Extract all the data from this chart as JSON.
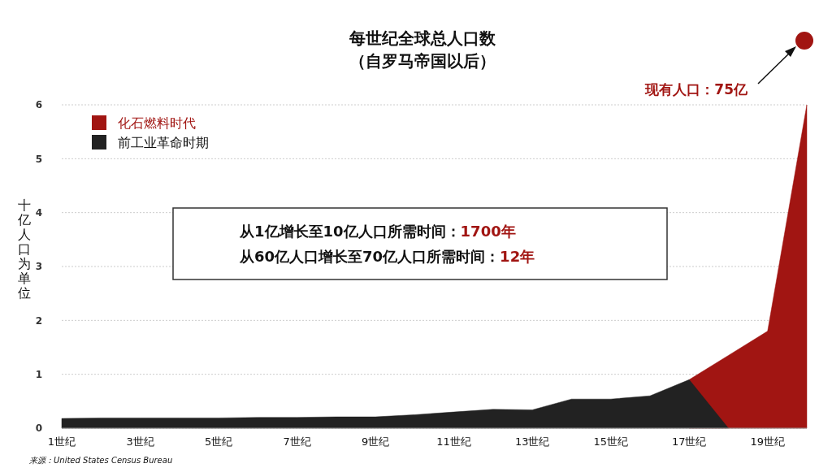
{
  "chart_data": {
    "type": "area",
    "title": "每世纪全球总人口数",
    "subtitle": "（自罗马帝国以后）",
    "ylabel": "十亿人口为单位",
    "categories": [
      "1世纪",
      null,
      "3世纪",
      null,
      "5世纪",
      null,
      "7世纪",
      null,
      "9世纪",
      null,
      "11世纪",
      null,
      "13世纪",
      null,
      "15世纪",
      null,
      "17世纪",
      null,
      "19世纪",
      null
    ],
    "series": [
      {
        "name": "化石燃料时代",
        "color": "#a11512",
        "values": [
          null,
          null,
          null,
          null,
          null,
          null,
          null,
          null,
          null,
          null,
          null,
          null,
          null,
          null,
          null,
          null,
          0.9,
          1.35,
          1.8,
          6.0
        ]
      },
      {
        "name": "前工业革命时期",
        "color": "#222222",
        "values": [
          0.18,
          0.19,
          0.19,
          0.19,
          0.19,
          0.2,
          0.2,
          0.21,
          0.21,
          0.25,
          0.3,
          0.35,
          0.34,
          0.54,
          0.54,
          0.6,
          0.9,
          0,
          null,
          null
        ]
      }
    ],
    "ylim": [
      0,
      6
    ],
    "yticks": [
      0,
      1,
      2,
      3,
      4,
      5,
      6
    ],
    "grid": "y",
    "legend": "top left",
    "annotations": [
      "现有人口：75亿",
      "从1亿增长至10亿人口所需时间：1700年",
      "从60亿人口增长至70亿人口所需时间：12年",
      "来源：United States Census Bureau"
    ]
  }
}
